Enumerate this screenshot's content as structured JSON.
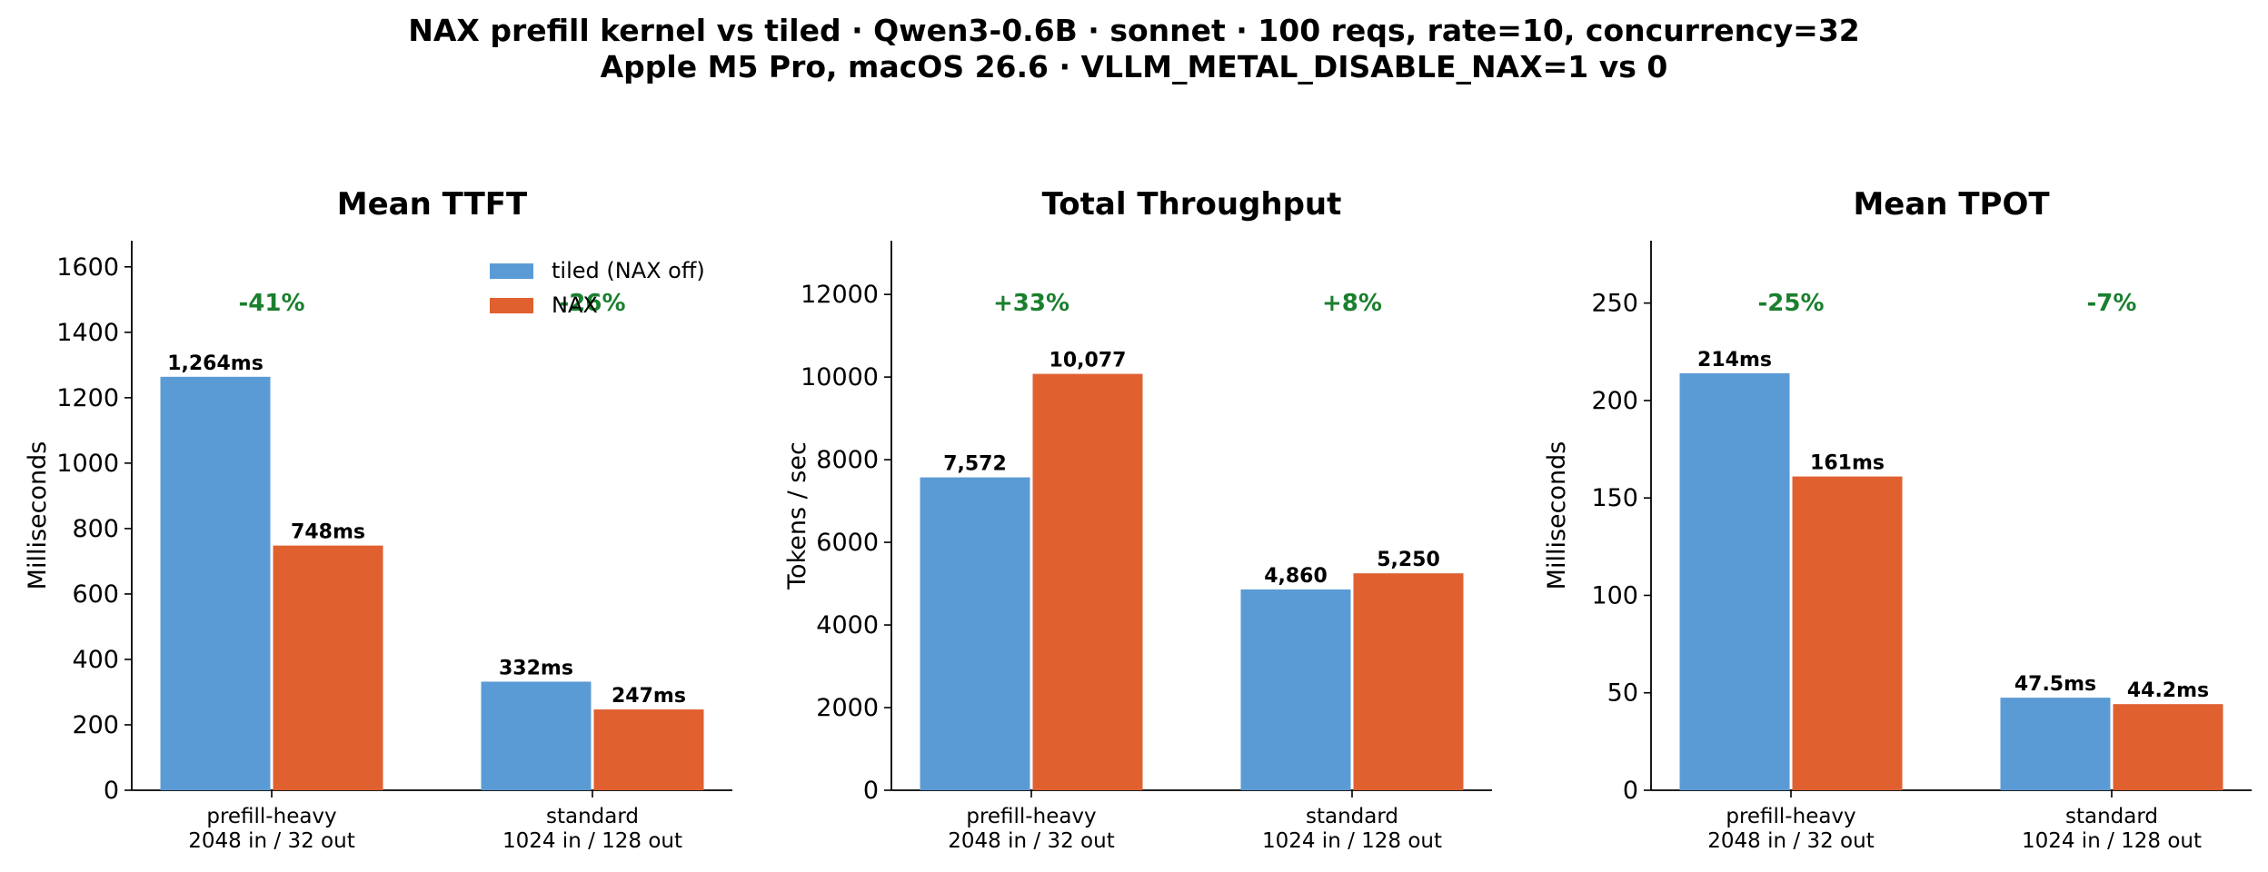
{
  "figure": {
    "title_line1": "NAX prefill kernel vs tiled · Qwen3-0.6B · sonnet · 100 reqs, rate=10, concurrency=32",
    "title_line2": "Apple M5 Pro, macOS 26.6 · VLLM_METAL_DISABLE_NAX=1 vs 0",
    "colors": {
      "tiled": "#5b9bd5",
      "nax": "#e06030",
      "delta": "#1a7f2e",
      "text": "#000000"
    }
  },
  "chart_data": [
    {
      "type": "bar",
      "title": "Mean TTFT",
      "ylabel": "Milliseconds",
      "xlabel": "",
      "ylim": [
        0,
        1680
      ],
      "yticks": [
        0,
        200,
        400,
        600,
        800,
        1000,
        1200,
        1400,
        1600
      ],
      "categories": [
        "prefill-heavy\n2048 in / 32 out",
        "standard\n1024 in / 128 out"
      ],
      "series": [
        {
          "name": "tiled (NAX off)",
          "values": [
            1264,
            332
          ],
          "labels": [
            "1,264ms",
            "332ms"
          ]
        },
        {
          "name": "NAX",
          "values": [
            748,
            247
          ],
          "labels": [
            "748ms",
            "247ms"
          ]
        }
      ],
      "deltas": [
        "-41%",
        "-26%"
      ],
      "legend": "top-right",
      "grid": false
    },
    {
      "type": "bar",
      "title": "Total Throughput",
      "ylabel": "Tokens / sec",
      "xlabel": "",
      "ylim": [
        0,
        13300
      ],
      "yticks": [
        0,
        2000,
        4000,
        6000,
        8000,
        10000,
        12000
      ],
      "categories": [
        "prefill-heavy\n2048 in / 32 out",
        "standard\n1024 in / 128 out"
      ],
      "series": [
        {
          "name": "tiled (NAX off)",
          "values": [
            7572,
            4860
          ],
          "labels": [
            "7,572",
            "4,860"
          ]
        },
        {
          "name": "NAX",
          "values": [
            10077,
            5250
          ],
          "labels": [
            "10,077",
            "5,250"
          ]
        }
      ],
      "deltas": [
        "+33%",
        "+8%"
      ],
      "legend": "none",
      "grid": false
    },
    {
      "type": "bar",
      "title": "Mean TPOT",
      "ylabel": "Milliseconds",
      "xlabel": "",
      "ylim": [
        0,
        282
      ],
      "yticks": [
        0,
        50,
        100,
        150,
        200,
        250
      ],
      "categories": [
        "prefill-heavy\n2048 in / 32 out",
        "standard\n1024 in / 128 out"
      ],
      "series": [
        {
          "name": "tiled (NAX off)",
          "values": [
            214,
            47.5
          ],
          "labels": [
            "214ms",
            "47.5ms"
          ]
        },
        {
          "name": "NAX",
          "values": [
            161,
            44.2
          ],
          "labels": [
            "161ms",
            "44.2ms"
          ]
        }
      ],
      "deltas": [
        "-25%",
        "-7%"
      ],
      "legend": "none",
      "grid": false
    }
  ]
}
